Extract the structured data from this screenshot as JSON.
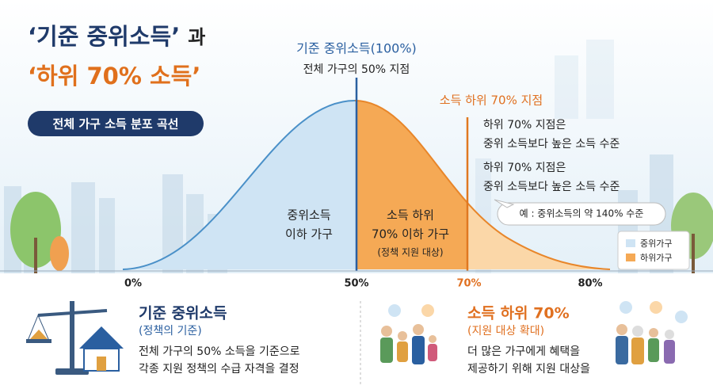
{
  "header": {
    "title_line1": "‘기준 중위소득’",
    "title_line1_suffix": "과",
    "title_line2": "‘하위 70% 소득’",
    "badge": "전체 가구 소득 분포 곡선"
  },
  "curve": {
    "median_label": "기준 중위소득(100%)",
    "median_sub": "전체 가구의 50% 지점",
    "p70_label": "소득 하위 70% 지점",
    "notes": [
      [
        "하위 70% 지점은",
        "중위 소득보다 높은 소득 수준"
      ],
      [
        "하위 70% 지점은",
        "중위 소득보다 높은 소득 수준"
      ]
    ],
    "bubble": "예 : 중위소득의 약 140% 수준",
    "left_area": [
      "중위소득",
      "이하 가구"
    ],
    "right_area": [
      "소득 하위",
      "70% 이하 가구",
      "(정책 지원 대상)"
    ],
    "legend": [
      "중위가구",
      "하위가구"
    ],
    "axis_labels": [
      "0%",
      "50%",
      "70%",
      "80%"
    ]
  },
  "bottom": {
    "left": {
      "title": "기준 중위소득",
      "subtitle": "(정책의 기준)",
      "lines": [
        "전체 가구의 50% 소득을 기준으로",
        "각종 지원 정책의 수급 자격을 결정"
      ]
    },
    "right": {
      "title": "소득 하위 70%",
      "subtitle": "(지원 대상 확대)",
      "lines": [
        "더 많은 가구에게 혜택을",
        "제공하기 위해 지원 대상을"
      ]
    }
  }
}
